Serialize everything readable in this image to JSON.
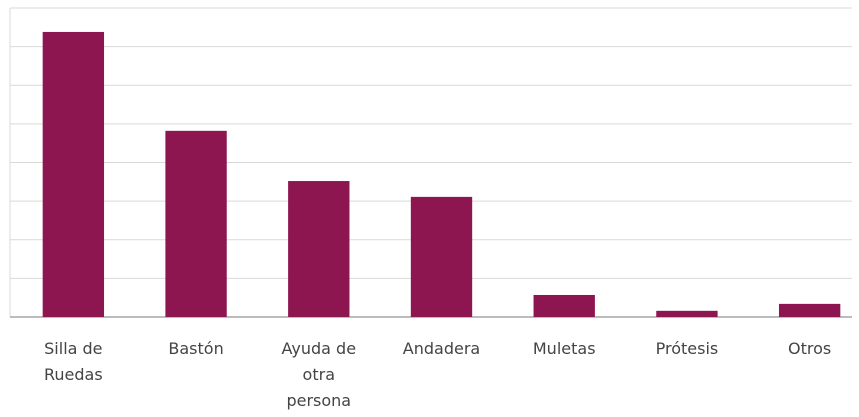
{
  "chart_data": {
    "type": "bar",
    "categories": [
      "Silla de Ruedas",
      "Bastón",
      "Ayuda de otra persona",
      "Andadera",
      "Muletas",
      "Prótesis",
      "Otros"
    ],
    "values": [
      7.38,
      4.82,
      3.52,
      3.11,
      0.57,
      0.16,
      0.34
    ],
    "color": "#8e1650",
    "ylim": [
      0,
      8
    ],
    "yticks": [
      0,
      1,
      2,
      3,
      4,
      5,
      6,
      7,
      8
    ],
    "grid": true
  }
}
